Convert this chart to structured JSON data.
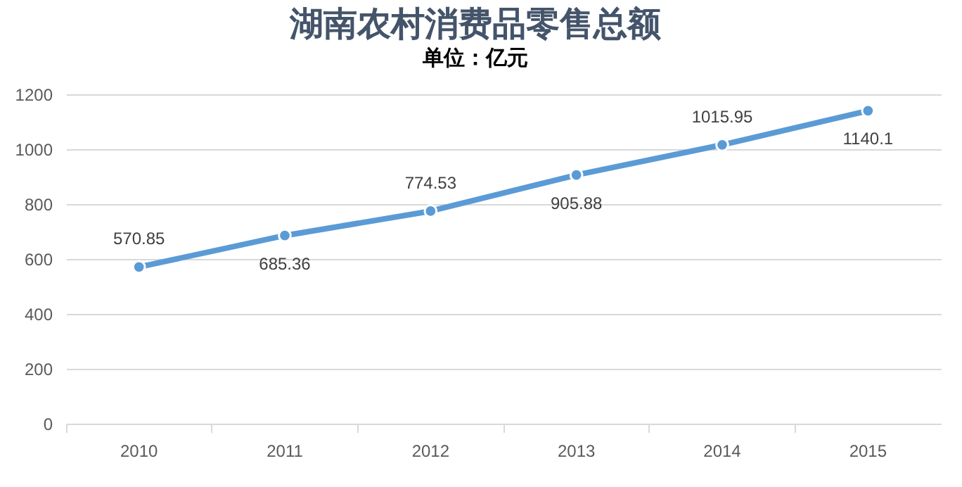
{
  "chart_data": {
    "type": "line",
    "title": "湖南农村消费品零售总额",
    "subtitle": "单位：亿元",
    "categories": [
      "2010",
      "2011",
      "2012",
      "2013",
      "2014",
      "2015"
    ],
    "series": [
      {
        "color": "#5b9bd5",
        "values": [
          570.85,
          685.36,
          774.53,
          905.88,
          1015.95,
          1140.1
        ]
      }
    ],
    "ylim": [
      0,
      1200
    ],
    "yticks": [
      0,
      200,
      400,
      600,
      800,
      1000,
      1200
    ],
    "grid": "y",
    "marker": "circle",
    "data_labels": true,
    "line_style": "solid"
  }
}
